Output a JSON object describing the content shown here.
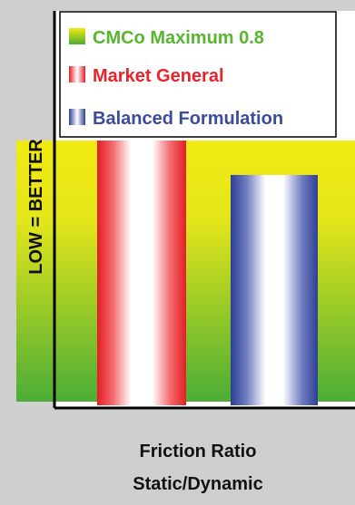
{
  "chart_data": {
    "type": "bar",
    "title": "",
    "xlabel": [
      "Friction Ratio",
      "Static/Dynamic"
    ],
    "ylabel": "LOW = BETTER",
    "ylim": [
      0,
      1.0
    ],
    "reference_band": {
      "name": "CMCo Maximum 0.8",
      "max": 0.8,
      "color": "#57b52f"
    },
    "series": [
      {
        "name": "Market General",
        "value": 1.0,
        "color": "#e8232b"
      },
      {
        "name": "Balanced Formulation",
        "value": 0.87,
        "color": "#3b4c9c"
      }
    ],
    "legend_placement": "top-right",
    "grid": false
  },
  "legend": {
    "items": [
      {
        "label": "CMCo Maximum 0.8",
        "color": "#57b52f"
      },
      {
        "label": "Market General",
        "color": "#e8232b"
      },
      {
        "label": "Balanced Formulation",
        "color": "#3b4c9c"
      }
    ]
  }
}
